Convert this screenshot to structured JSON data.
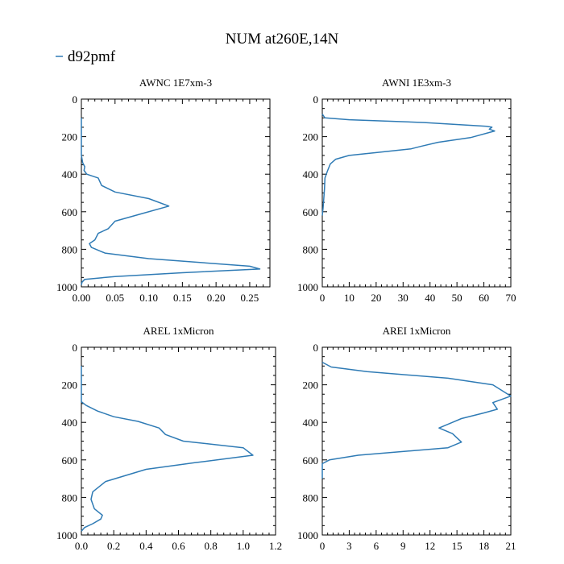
{
  "figure": {
    "title": "NUM at260E,14N",
    "legend": {
      "label": "d92pmf",
      "color": "#2f7bb5",
      "placement": "top-left"
    }
  },
  "chart_data": [
    {
      "type": "line",
      "title": "AWNC  1E7xm-3",
      "xlim": [
        0,
        0.28
      ],
      "ylim": [
        1000,
        0
      ],
      "y_inverted": true,
      "xticks": [
        0,
        0.05,
        0.1,
        0.15,
        0.2,
        0.25
      ],
      "xtick_labels": [
        "0.00",
        "0.05",
        "0.10",
        "0.15",
        "0.20",
        "0.25"
      ],
      "yticks": [
        0,
        200,
        400,
        600,
        800,
        1000
      ],
      "ytick_labels": [
        "0",
        "200",
        "400",
        "600",
        "800",
        "1000"
      ],
      "series": [
        {
          "color": "#2f7bb5",
          "x": [
            0,
            0,
            0.002,
            0.005,
            0.004,
            0.008,
            0.025,
            0.03,
            0.05,
            0.1,
            0.13,
            0.09,
            0.05,
            0.04,
            0.025,
            0.02,
            0.012,
            0.015,
            0.035,
            0.1,
            0.25,
            0.265,
            0.15,
            0.05,
            0.005,
            0.001,
            0
          ],
          "y": [
            100,
            300,
            340,
            360,
            380,
            400,
            420,
            460,
            495,
            530,
            570,
            610,
            650,
            690,
            715,
            750,
            770,
            790,
            820,
            850,
            890,
            905,
            925,
            945,
            960,
            975,
            990
          ]
        }
      ]
    },
    {
      "type": "line",
      "title": "AWNI  1E3xm-3",
      "xlim": [
        0,
        70
      ],
      "ylim": [
        1000,
        0
      ],
      "y_inverted": true,
      "xticks": [
        0,
        10,
        20,
        30,
        40,
        50,
        60,
        70
      ],
      "xtick_labels": [
        "0",
        "10",
        "20",
        "30",
        "40",
        "50",
        "60",
        "70"
      ],
      "yticks": [
        0,
        200,
        400,
        600,
        800,
        1000
      ],
      "ytick_labels": [
        "0",
        "200",
        "400",
        "600",
        "800",
        "1000"
      ],
      "series": [
        {
          "color": "#2f7bb5",
          "x": [
            0,
            1,
            10,
            38,
            61,
            63,
            62,
            64,
            55,
            43,
            37,
            33,
            20,
            10,
            5,
            3,
            2,
            1,
            0.8,
            0.5,
            0.3,
            0
          ],
          "y": [
            80,
            100,
            110,
            125,
            145,
            150,
            160,
            170,
            205,
            230,
            250,
            265,
            285,
            300,
            320,
            345,
            380,
            420,
            480,
            540,
            580,
            620
          ]
        }
      ]
    },
    {
      "type": "line",
      "title": "AREL  1xMicron",
      "xlim": [
        0,
        1.2
      ],
      "ylim": [
        1000,
        0
      ],
      "y_inverted": true,
      "xticks": [
        0,
        0.2,
        0.4,
        0.6,
        0.8,
        1.0,
        1.2
      ],
      "xtick_labels": [
        "0.0",
        "0.2",
        "0.4",
        "0.6",
        "0.8",
        "1.0",
        "1.2"
      ],
      "yticks": [
        0,
        200,
        400,
        600,
        800,
        1000
      ],
      "ytick_labels": [
        "0",
        "200",
        "400",
        "600",
        "800",
        "1000"
      ],
      "series": [
        {
          "color": "#2f7bb5",
          "x": [
            0,
            0,
            0.03,
            0.1,
            0.2,
            0.35,
            0.48,
            0.52,
            0.63,
            1.0,
            1.06,
            0.7,
            0.4,
            0.15,
            0.07,
            0.06,
            0.08,
            0.13,
            0.12,
            0.07,
            0.02,
            0
          ],
          "y": [
            100,
            290,
            310,
            340,
            370,
            395,
            430,
            465,
            500,
            535,
            575,
            615,
            650,
            715,
            770,
            810,
            860,
            895,
            915,
            940,
            960,
            980
          ]
        }
      ]
    },
    {
      "type": "line",
      "title": "AREI  1xMicron",
      "xlim": [
        0,
        21
      ],
      "ylim": [
        1000,
        0
      ],
      "y_inverted": true,
      "xticks": [
        0,
        3,
        6,
        9,
        12,
        15,
        18,
        21
      ],
      "xtick_labels": [
        "0",
        "3",
        "6",
        "9",
        "12",
        "15",
        "18",
        "21"
      ],
      "yticks": [
        0,
        200,
        400,
        600,
        800,
        1000
      ],
      "ytick_labels": [
        "0",
        "200",
        "400",
        "600",
        "800",
        "1000"
      ],
      "series": [
        {
          "color": "#2f7bb5",
          "x": [
            0,
            1,
            5,
            14,
            19,
            21,
            19,
            19.5,
            18,
            15.5,
            14.5,
            13,
            14.5,
            15.5,
            14,
            4,
            0.8,
            0,
            0
          ],
          "y": [
            80,
            105,
            130,
            165,
            200,
            260,
            295,
            330,
            350,
            380,
            400,
            430,
            460,
            505,
            535,
            575,
            600,
            620,
            700
          ]
        }
      ]
    }
  ]
}
